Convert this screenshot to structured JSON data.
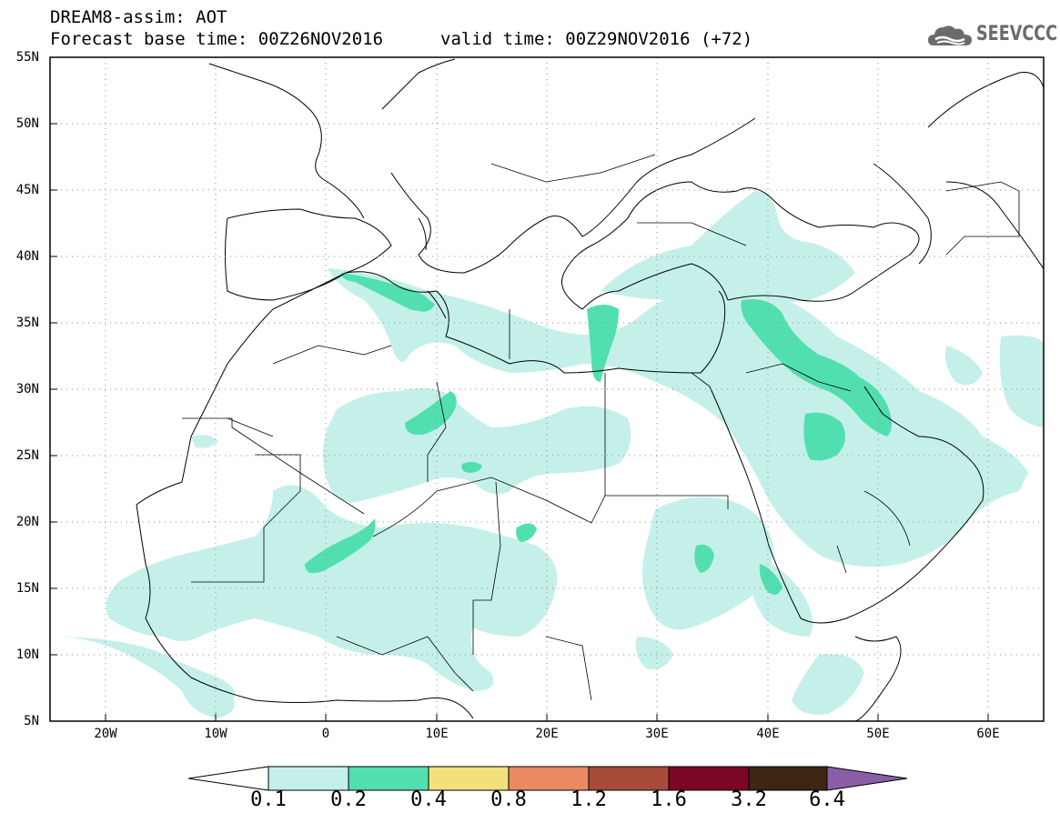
{
  "header": {
    "title": "DREAM8-assim: AOT",
    "base_time": "Forecast base time: 00Z26NOV2016",
    "valid_time": "valid time: 00Z29NOV2016 (+72)",
    "logo_text": "SEEVCCC",
    "logo_icon": "cloud-icon"
  },
  "axes": {
    "lat_labels": [
      "55N",
      "50N",
      "45N",
      "40N",
      "35N",
      "30N",
      "25N",
      "20N",
      "15N",
      "10N",
      "5N"
    ],
    "lon_labels": [
      "20W",
      "10W",
      "0",
      "10E",
      "20E",
      "30E",
      "40E",
      "50E",
      "60E"
    ],
    "lat_range": [
      5,
      55
    ],
    "lon_range": [
      -25,
      65
    ],
    "grid": "dotted"
  },
  "colorbar": {
    "labels": [
      "0.1",
      "0.2",
      "0.4",
      "0.8",
      "1.2",
      "1.6",
      "3.2",
      "6.4"
    ],
    "colors": [
      "#ffffff",
      "#c5f0ea",
      "#52dfb0",
      "#f2e07a",
      "#e98a62",
      "#a94b3b",
      "#7d0526",
      "#3e2614",
      "#8a5ea6"
    ],
    "extend": "both"
  },
  "field_colors": {
    "low": "#c5f0ea",
    "mid": "#52dfb0"
  }
}
